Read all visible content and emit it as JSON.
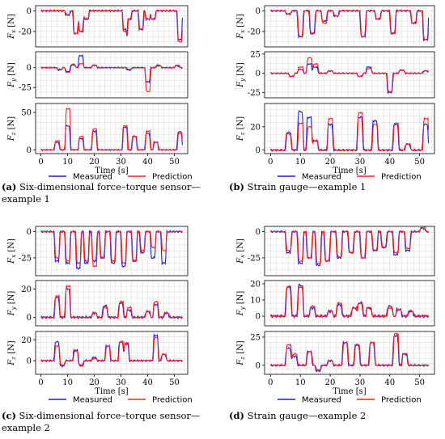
{
  "colors": {
    "measured": "#1f1fd6",
    "prediction": "#ff2020",
    "grid": "#d8d8d8",
    "axis": "#000000"
  },
  "axis_labels": {
    "x": "Time [s]",
    "fx": "F",
    "fx_sub": "x",
    "fy": "F",
    "fy_sub": "y",
    "fz": "F",
    "fz_sub": "z",
    "unit": "[N]"
  },
  "legend": {
    "measured": "Measured",
    "prediction": "Prediction"
  },
  "captions": [
    {
      "label": "(a)",
      "text": "Six-dimensional force–torque sensor—example 1"
    },
    {
      "label": "(b)",
      "text": "Strain gauge—example 1"
    },
    {
      "label": "(c)",
      "text": "Six-dimensional force–torque sensor—example 2"
    },
    {
      "label": "(d)",
      "text": "Strain gauge—example 2"
    }
  ],
  "chart_data": [
    {
      "id": "a",
      "type": "line",
      "xlim": [
        -2,
        55
      ],
      "xticks": [
        0,
        10,
        20,
        30,
        40,
        50
      ],
      "legend_position": "bottom",
      "subplots": [
        {
          "signal": "Fx",
          "ylim": [
            -35,
            5
          ],
          "yticks": [
            0,
            -20
          ],
          "events": [
            [
              10,
              -4,
              -3.5
            ],
            [
              13,
              -22,
              -22
            ],
            [
              15,
              -20,
              -20
            ],
            [
              17,
              -8,
              -8
            ],
            [
              31.5,
              -18,
              -20
            ],
            [
              33,
              -8,
              -8
            ],
            [
              37.5,
              -18,
              -18
            ],
            [
              40,
              -8,
              -8
            ],
            [
              42,
              -8,
              -8
            ],
            [
              52,
              -28,
              -30
            ]
          ]
        },
        {
          "signal": "Fy",
          "ylim": [
            -38,
            20
          ],
          "yticks": [
            0,
            -25
          ],
          "events": [
            [
              7,
              -3,
              -2
            ],
            [
              10,
              -5,
              -6
            ],
            [
              12,
              4,
              3
            ],
            [
              15,
              15,
              5
            ],
            [
              20,
              3,
              3
            ],
            [
              33,
              -3,
              -2
            ],
            [
              40,
              -18,
              -30
            ],
            [
              44,
              3,
              2
            ],
            [
              51,
              2,
              3
            ]
          ]
        },
        {
          "signal": "Fz",
          "ylim": [
            -5,
            62
          ],
          "yticks": [
            0,
            50
          ],
          "events": [
            [
              6,
              10,
              12
            ],
            [
              10,
              32,
              55
            ],
            [
              15,
              15,
              18
            ],
            [
              20,
              25,
              28
            ],
            [
              31.5,
              30,
              32
            ],
            [
              35,
              18,
              18
            ],
            [
              40,
              22,
              25
            ],
            [
              43,
              10,
              10
            ],
            [
              52,
              24,
              22
            ]
          ]
        }
      ]
    },
    {
      "id": "b",
      "type": "line",
      "xlim": [
        -2,
        55
      ],
      "xticks": [
        0,
        10,
        20,
        30,
        40,
        50
      ],
      "legend_position": "bottom",
      "subplots": [
        {
          "signal": "Fx",
          "ylim": [
            -35,
            5
          ],
          "yticks": [
            0,
            -20
          ],
          "events": [
            [
              6,
              -3,
              -3
            ],
            [
              10,
              -25,
              -25
            ],
            [
              14,
              -22,
              -22
            ],
            [
              18,
              -10,
              -12
            ],
            [
              22,
              -5,
              -5
            ],
            [
              31,
              -25,
              -25
            ],
            [
              36,
              -8,
              -8
            ],
            [
              41,
              -22,
              -22
            ],
            [
              48,
              -12,
              -12
            ],
            [
              52,
              -28,
              -28
            ]
          ]
        },
        {
          "signal": "Fy",
          "ylim": [
            -32,
            28
          ],
          "yticks": [
            25,
            0,
            -25
          ],
          "events": [
            [
              7,
              -4,
              -4
            ],
            [
              10,
              5,
              8
            ],
            [
              13,
              12,
              20
            ],
            [
              15,
              8,
              12
            ],
            [
              20,
              3,
              3
            ],
            [
              30,
              -4,
              -4
            ],
            [
              33,
              8,
              6
            ],
            [
              40,
              -25,
              -24
            ],
            [
              44,
              4,
              4
            ],
            [
              52,
              3,
              3
            ]
          ]
        },
        {
          "signal": "Fz",
          "ylim": [
            -3,
            40
          ],
          "yticks": [
            0,
            20
          ],
          "events": [
            [
              6,
              15,
              14
            ],
            [
              10,
              33,
              23
            ],
            [
              13,
              28,
              20
            ],
            [
              15,
              8,
              8
            ],
            [
              20,
              22,
              27
            ],
            [
              30,
              28,
              32
            ],
            [
              35,
              25,
              22
            ],
            [
              42,
              22,
              23
            ],
            [
              46,
              5,
              5
            ],
            [
              52,
              22,
              27
            ]
          ]
        }
      ]
    },
    {
      "id": "c",
      "type": "line",
      "xlim": [
        -2,
        55
      ],
      "xticks": [
        0,
        10,
        20,
        30,
        40,
        50
      ],
      "legend_position": "bottom",
      "subplots": [
        {
          "signal": "Fx",
          "ylim": [
            -42,
            5
          ],
          "yticks": [
            0,
            -25
          ],
          "events": [
            [
              6,
              -28,
              -25
            ],
            [
              10,
              -30,
              -28
            ],
            [
              14,
              -35,
              -30
            ],
            [
              17,
              -30,
              -28
            ],
            [
              20,
              -28,
              -33
            ],
            [
              23,
              -25,
              -25
            ],
            [
              27,
              -30,
              -28
            ],
            [
              31,
              -33,
              -30
            ],
            [
              35,
              -28,
              -28
            ],
            [
              38,
              -20,
              -18
            ],
            [
              42,
              -25,
              -15
            ],
            [
              46,
              -30,
              -18
            ]
          ]
        },
        {
          "signal": "Fy",
          "ylim": [
            -6,
            26
          ],
          "yticks": [
            0,
            20
          ],
          "events": [
            [
              6,
              14,
              15
            ],
            [
              10,
              20,
              22
            ],
            [
              20,
              3,
              3
            ],
            [
              24,
              8,
              7
            ],
            [
              30,
              10,
              11
            ],
            [
              33,
              5,
              7
            ],
            [
              40,
              4,
              4
            ],
            [
              43,
              9,
              11
            ],
            [
              47,
              3,
              3
            ]
          ]
        },
        {
          "signal": "Fz",
          "ylim": [
            -13,
            28
          ],
          "yticks": [
            0,
            20
          ],
          "events": [
            [
              6,
              18,
              14
            ],
            [
              8,
              -5,
              -4
            ],
            [
              13,
              10,
              9
            ],
            [
              15,
              -4,
              -5
            ],
            [
              20,
              3,
              2
            ],
            [
              25,
              14,
              14
            ],
            [
              30,
              18,
              18
            ],
            [
              32,
              16,
              17
            ],
            [
              43,
              24,
              22
            ],
            [
              46,
              6,
              6
            ]
          ]
        }
      ]
    },
    {
      "id": "d",
      "type": "line",
      "xlim": [
        -2,
        55
      ],
      "xticks": [
        0,
        10,
        20,
        30,
        40,
        50
      ],
      "legend_position": "bottom",
      "subplots": [
        {
          "signal": "Fx",
          "ylim": [
            -42,
            5
          ],
          "yticks": [
            0,
            -25
          ],
          "events": [
            [
              6,
              -20,
              -18
            ],
            [
              10,
              -30,
              -28
            ],
            [
              13,
              -25,
              -25
            ],
            [
              16,
              -32,
              -30
            ],
            [
              19,
              -28,
              -28
            ],
            [
              23,
              -25,
              -24
            ],
            [
              27,
              -20,
              -20
            ],
            [
              31,
              -25,
              -25
            ],
            [
              35,
              -18,
              -18
            ],
            [
              38,
              -15,
              -15
            ],
            [
              42,
              -22,
              -20
            ],
            [
              46,
              -18,
              -16
            ],
            [
              51,
              3,
              4
            ]
          ]
        },
        {
          "signal": "Fy",
          "ylim": [
            -6,
            22
          ],
          "yticks": [
            0,
            10,
            20
          ],
          "events": [
            [
              6,
              18,
              18
            ],
            [
              10,
              19,
              18
            ],
            [
              14,
              5,
              6
            ],
            [
              20,
              3,
              3
            ],
            [
              23,
              7,
              8
            ],
            [
              28,
              5,
              5
            ],
            [
              30,
              8,
              8
            ],
            [
              33,
              5,
              5
            ],
            [
              40,
              6,
              5
            ],
            [
              43,
              4,
              4
            ],
            [
              47,
              3,
              3
            ]
          ]
        },
        {
          "signal": "Fz",
          "ylim": [
            -8,
            30
          ],
          "yticks": [
            0,
            25
          ],
          "events": [
            [
              6,
              15,
              18
            ],
            [
              8,
              8,
              10
            ],
            [
              13,
              12,
              12
            ],
            [
              16,
              -5,
              -4
            ],
            [
              20,
              4,
              4
            ],
            [
              25,
              20,
              20
            ],
            [
              29,
              18,
              18
            ],
            [
              34,
              20,
              20
            ],
            [
              42,
              26,
              28
            ],
            [
              45,
              10,
              10
            ]
          ]
        }
      ]
    }
  ]
}
